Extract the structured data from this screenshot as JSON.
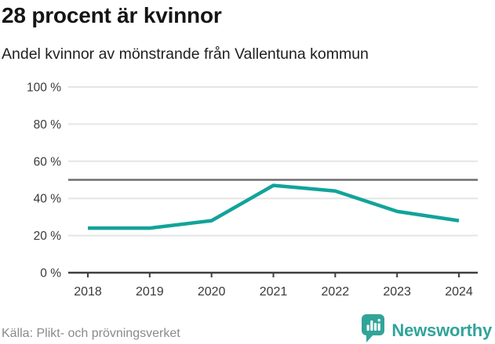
{
  "header": {
    "title": "28 procent är kvinnor",
    "subtitle": "Andel kvinnor av mönstrande från Vallentuna kommun"
  },
  "chart_data": {
    "type": "line",
    "title": "28 procent är kvinnor",
    "subtitle": "Andel kvinnor av mönstrande från Vallentuna kommun",
    "categories": [
      "2018",
      "2019",
      "2020",
      "2021",
      "2022",
      "2023",
      "2024"
    ],
    "series": [
      {
        "name": "Andel kvinnor av mönstrande",
        "values": [
          24,
          24,
          28,
          47,
          44,
          33,
          28
        ]
      }
    ],
    "xlabel": "",
    "ylabel": "",
    "ylim": [
      0,
      100
    ],
    "y_ticks": [
      0,
      20,
      40,
      60,
      80,
      100
    ],
    "y_tick_suffix": " %",
    "reference_line": 50,
    "grid": true,
    "legend": "none",
    "colors": {
      "line": "#12a39a",
      "grid": "#e5e5e5",
      "reference_line": "#6e6e6e",
      "axis": "#3f3f3f",
      "tick_label": "#3a3a3a"
    }
  },
  "footer": {
    "source": "Källa: Plikt- och prövningsverket",
    "logo_text": "Newsworthy",
    "logo_color": "#31a49a"
  }
}
